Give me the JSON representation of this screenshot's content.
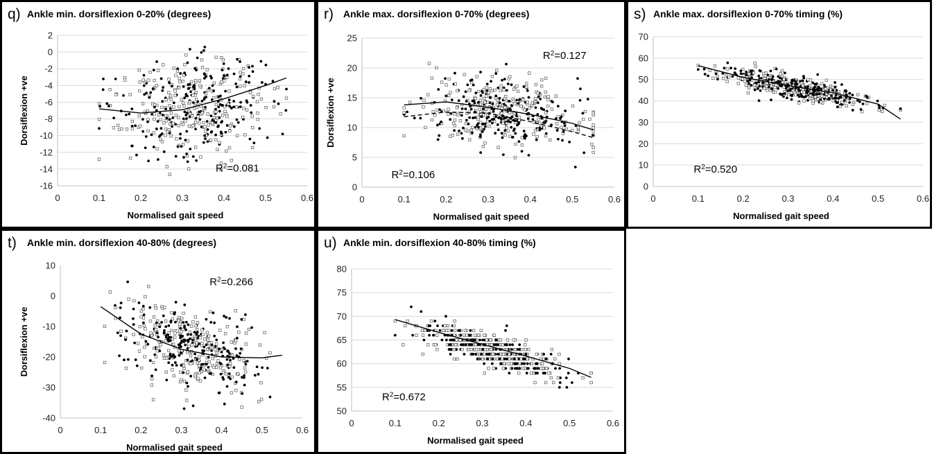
{
  "chart_data": [
    {
      "id": "q",
      "letter": "q)",
      "type": "scatter",
      "title": "Ankle min. dorsiflexion 0-20% (degrees)",
      "xlabel": "Normalised gait speed",
      "ylabel": "Dorsiflexion +ve",
      "xlim": [
        0,
        0.6
      ],
      "ylim": [
        -16,
        2
      ],
      "xticks": [
        0,
        0.1,
        0.2,
        0.3,
        0.4,
        0.5,
        0.6
      ],
      "yticks": [
        -16,
        -14,
        -12,
        -10,
        -8,
        -6,
        -4,
        -2,
        0,
        2
      ],
      "grid": true,
      "r2_label": "R",
      "r2_value": "=0.081",
      "r2_anchor": [
        0.38,
        -14.3
      ],
      "trend_solid": [
        [
          0.1,
          -6.8
        ],
        [
          0.2,
          -7.3
        ],
        [
          0.3,
          -6.9
        ],
        [
          0.4,
          -5.6
        ],
        [
          0.5,
          -4.0
        ],
        [
          0.55,
          -3.1
        ]
      ],
      "trend_dashed": [],
      "cloud": {
        "center": [
          0.32,
          -6.5
        ],
        "spread": [
          0.09,
          3.0
        ],
        "n": 480,
        "seed": 11,
        "x_range": [
          0.1,
          0.55
        ],
        "slope": 4
      }
    },
    {
      "id": "r",
      "letter": "r)",
      "type": "scatter",
      "title": "Ankle max. dorsiflexion 0-70% (degrees)",
      "xlabel": "Normalised gait speed",
      "ylabel": "Dorsiflexion +ve",
      "xlim": [
        0,
        0.6
      ],
      "ylim": [
        0,
        25
      ],
      "xticks": [
        0,
        0.1,
        0.2,
        0.3,
        0.4,
        0.5,
        0.6
      ],
      "yticks": [
        0,
        5,
        10,
        15,
        20,
        25
      ],
      "grid": true,
      "r2_label": "R",
      "r2_value": "=0.106",
      "r2_anchor": [
        0.07,
        1.5
      ],
      "r2b_label": "R",
      "r2b_value": "=0.127",
      "r2b_anchor": [
        0.43,
        21.5
      ],
      "trend_solid": [
        [
          0.1,
          13.8
        ],
        [
          0.2,
          14.3
        ],
        [
          0.3,
          13.4
        ],
        [
          0.4,
          12.2
        ],
        [
          0.5,
          10.7
        ],
        [
          0.55,
          9.6
        ]
      ],
      "trend_dashed": [
        [
          0.1,
          11.8
        ],
        [
          0.2,
          12.6
        ],
        [
          0.3,
          12.4
        ],
        [
          0.4,
          11.0
        ],
        [
          0.5,
          9.3
        ],
        [
          0.55,
          8.3
        ]
      ],
      "cloud": {
        "center": [
          0.33,
          12.6
        ],
        "spread": [
          0.09,
          2.6
        ],
        "n": 500,
        "seed": 23,
        "x_range": [
          0.1,
          0.55
        ],
        "slope": -8
      }
    },
    {
      "id": "s",
      "letter": "s)",
      "type": "scatter",
      "title": "Ankle max. dorsiflexion 0-70% timing (%)",
      "xlabel": "Normalised gait speed",
      "ylabel": "",
      "xlim": [
        0,
        0.6
      ],
      "ylim": [
        0,
        70
      ],
      "xticks": [
        0,
        0.1,
        0.2,
        0.3,
        0.4,
        0.5,
        0.6
      ],
      "yticks": [
        0,
        10,
        20,
        30,
        40,
        50,
        60,
        70
      ],
      "grid": true,
      "r2_label": "R",
      "r2_value": "=0.520",
      "r2_anchor": [
        0.09,
        6.5
      ],
      "trend_solid": [
        [
          0.1,
          56.5
        ],
        [
          0.2,
          51.0
        ],
        [
          0.3,
          47.2
        ],
        [
          0.4,
          43.8
        ],
        [
          0.5,
          38.5
        ],
        [
          0.55,
          31.5
        ]
      ],
      "trend_dashed": [],
      "cloud": {
        "center": [
          0.32,
          46
        ],
        "spread": [
          0.085,
          2.8
        ],
        "n": 520,
        "seed": 37,
        "x_range": [
          0.1,
          0.55
        ],
        "slope": -40
      }
    },
    {
      "id": "t",
      "letter": "t)",
      "type": "scatter",
      "title": "Ankle min. dorsiflexion 40-80% (degrees)",
      "xlabel": "Normalised gait speed",
      "ylabel": "Dorsiflexion +ve",
      "xlim": [
        0,
        0.6
      ],
      "ylim": [
        -40,
        10
      ],
      "xticks": [
        0,
        0.1,
        0.2,
        0.3,
        0.4,
        0.5,
        0.6
      ],
      "yticks": [
        -40,
        -30,
        -20,
        -10,
        0,
        10
      ],
      "grid": false,
      "r2_label": "R",
      "r2_value": "=0.266",
      "r2_anchor": [
        0.37,
        3.5
      ],
      "trend_solid": [
        [
          0.1,
          -3.5
        ],
        [
          0.2,
          -12.5
        ],
        [
          0.3,
          -17.5
        ],
        [
          0.4,
          -20.0
        ],
        [
          0.5,
          -20.3
        ],
        [
          0.55,
          -19.4
        ]
      ],
      "trend_dashed": [],
      "cloud": {
        "center": [
          0.32,
          -17
        ],
        "spread": [
          0.085,
          6.0
        ],
        "n": 480,
        "seed": 53,
        "x_range": [
          0.11,
          0.52
        ],
        "slope": -40
      }
    },
    {
      "id": "u",
      "letter": "u)",
      "type": "scatter",
      "title": "Ankle min. dorsiflexion 40-80% timing (%)",
      "xlabel": "Normalised gait speed",
      "ylabel": "",
      "xlim": [
        0,
        0.6
      ],
      "ylim": [
        50,
        80
      ],
      "xticks": [
        0,
        0.1,
        0.2,
        0.3,
        0.4,
        0.5,
        0.6
      ],
      "yticks": [
        50,
        55,
        60,
        65,
        70,
        75,
        80
      ],
      "grid": true,
      "r2_label": "R",
      "r2_value": "=0.672",
      "r2_anchor": [
        0.07,
        52.3
      ],
      "trend_solid": [
        [
          0.1,
          69.3
        ],
        [
          0.2,
          66.6
        ],
        [
          0.3,
          64.1
        ],
        [
          0.4,
          61.6
        ],
        [
          0.5,
          59.0
        ],
        [
          0.55,
          57.1
        ]
      ],
      "trend_dashed": [],
      "cloud": {
        "center": [
          0.33,
          62.6
        ],
        "spread": [
          0.085,
          1.7
        ],
        "n": 520,
        "seed": 71,
        "x_range": [
          0.1,
          0.55
        ],
        "slope": -27,
        "quantize": 1
      }
    }
  ]
}
